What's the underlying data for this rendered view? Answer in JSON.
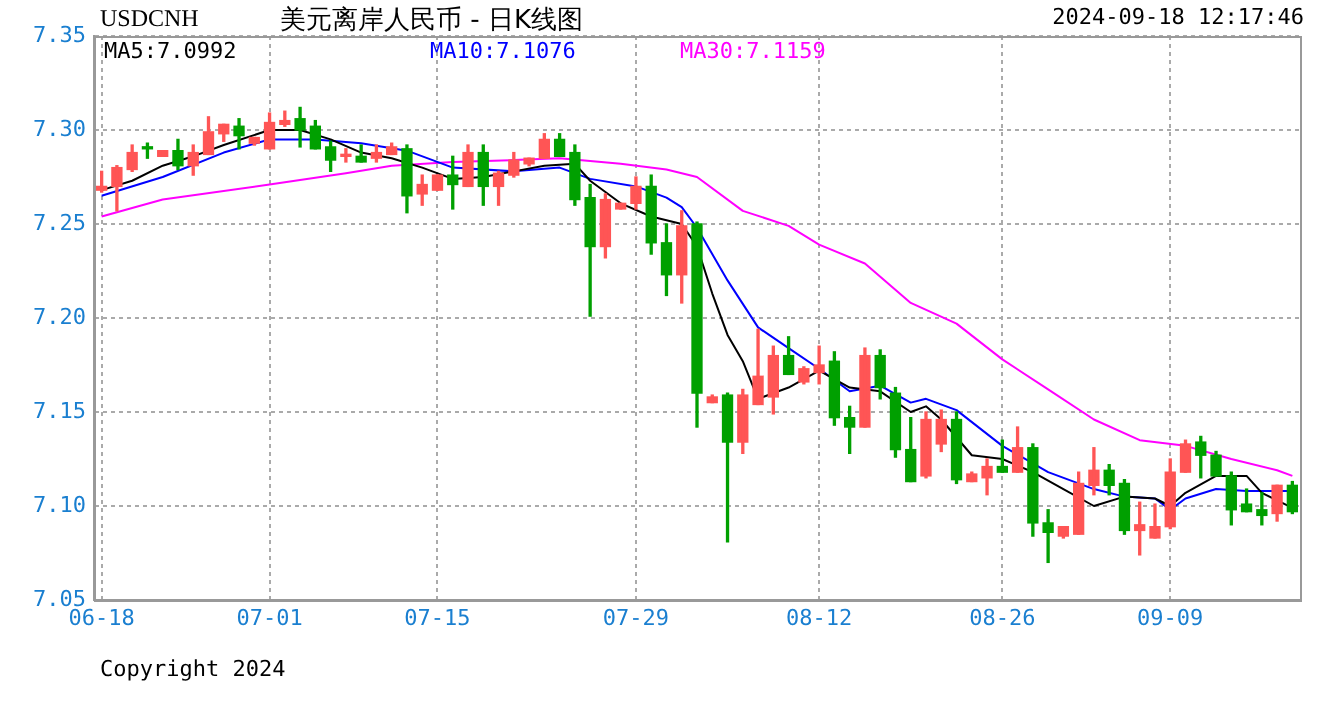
{
  "chart_data": {
    "type": "candlestick",
    "title": "美元离岸人民币 - 日K线图",
    "annotations": [
      "USDCNH",
      "2024-09-18 12:17:46",
      "Copyright 2024"
    ],
    "categories": [
      "06-18",
      null,
      null,
      null,
      null,
      null,
      null,
      null,
      null,
      null,
      null,
      "07-01",
      null,
      null,
      null,
      null,
      null,
      null,
      null,
      null,
      null,
      null,
      "07-15",
      null,
      null,
      null,
      null,
      null,
      null,
      null,
      null,
      null,
      null,
      null,
      null,
      "07-29",
      null,
      null,
      null,
      null,
      null,
      null,
      null,
      null,
      null,
      null,
      null,
      "08-12",
      null,
      null,
      null,
      null,
      null,
      null,
      null,
      null,
      null,
      null,
      null,
      "08-26",
      null,
      null,
      null,
      null,
      null,
      null,
      null,
      null,
      null,
      null,
      "09-09",
      null,
      null,
      null,
      null,
      null,
      null,
      null,
      null
    ],
    "ohlc": [
      [
        7.268,
        7.278,
        7.267,
        7.27
      ],
      [
        7.27,
        7.281,
        7.257,
        7.28
      ],
      [
        7.279,
        7.292,
        7.278,
        7.288
      ],
      [
        7.291,
        7.293,
        7.285,
        7.29
      ],
      [
        7.286,
        7.289,
        7.286,
        7.289
      ],
      [
        7.289,
        7.295,
        7.279,
        7.281
      ],
      [
        7.281,
        7.292,
        7.276,
        7.288
      ],
      [
        7.287,
        7.307,
        7.287,
        7.299
      ],
      [
        7.298,
        7.303,
        7.294,
        7.303
      ],
      [
        7.302,
        7.306,
        7.29,
        7.297
      ],
      [
        7.293,
        7.296,
        7.292,
        7.296
      ],
      [
        7.29,
        7.309,
        7.29,
        7.304
      ],
      [
        7.303,
        7.31,
        7.302,
        7.305
      ],
      [
        7.306,
        7.312,
        7.291,
        7.3
      ],
      [
        7.302,
        7.305,
        7.29,
        7.29
      ],
      [
        7.291,
        7.294,
        7.278,
        7.284
      ],
      [
        7.286,
        7.29,
        7.283,
        7.287
      ],
      [
        7.286,
        7.292,
        7.283,
        7.283
      ],
      [
        7.285,
        7.292,
        7.283,
        7.288
      ],
      [
        7.287,
        7.293,
        7.287,
        7.291
      ],
      [
        7.29,
        7.292,
        7.256,
        7.265
      ],
      [
        7.266,
        7.276,
        7.26,
        7.271
      ],
      [
        7.268,
        7.276,
        7.268,
        7.276
      ],
      [
        7.276,
        7.286,
        7.258,
        7.271
      ],
      [
        7.27,
        7.292,
        7.27,
        7.288
      ],
      [
        7.288,
        7.292,
        7.26,
        7.27
      ],
      [
        7.27,
        7.278,
        7.26,
        7.277
      ],
      [
        7.276,
        7.288,
        7.275,
        7.284
      ],
      [
        7.282,
        7.285,
        7.281,
        7.285
      ],
      [
        7.285,
        7.298,
        7.285,
        7.295
      ],
      [
        7.295,
        7.298,
        7.286,
        7.286
      ],
      [
        7.288,
        7.292,
        7.26,
        7.263
      ],
      [
        7.264,
        7.271,
        7.201,
        7.238
      ],
      [
        7.238,
        7.266,
        7.232,
        7.263
      ],
      [
        7.258,
        7.261,
        7.258,
        7.261
      ],
      [
        7.261,
        7.275,
        7.258,
        7.27
      ],
      [
        7.27,
        7.276,
        7.234,
        7.24
      ],
      [
        7.24,
        7.25,
        7.212,
        7.223
      ],
      [
        7.223,
        7.257,
        7.208,
        7.249
      ],
      [
        7.25,
        7.251,
        7.142,
        7.16
      ],
      [
        7.155,
        7.159,
        7.155,
        7.158
      ],
      [
        7.159,
        7.16,
        7.081,
        7.134
      ],
      [
        7.134,
        7.162,
        7.128,
        7.159
      ],
      [
        7.154,
        7.194,
        7.154,
        7.169
      ],
      [
        7.158,
        7.185,
        7.149,
        7.18
      ],
      [
        7.18,
        7.19,
        7.17,
        7.17
      ],
      [
        7.166,
        7.174,
        7.165,
        7.173
      ],
      [
        7.171,
        7.185,
        7.165,
        7.175
      ],
      [
        7.177,
        7.182,
        7.143,
        7.147
      ],
      [
        7.147,
        7.153,
        7.128,
        7.142
      ],
      [
        7.142,
        7.184,
        7.142,
        7.18
      ],
      [
        7.18,
        7.183,
        7.157,
        7.163
      ],
      [
        7.16,
        7.163,
        7.126,
        7.13
      ],
      [
        7.13,
        7.147,
        7.113,
        7.113
      ],
      [
        7.116,
        7.15,
        7.115,
        7.146
      ],
      [
        7.133,
        7.151,
        7.129,
        7.146
      ],
      [
        7.146,
        7.15,
        7.112,
        7.114
      ],
      [
        7.113,
        7.118,
        7.113,
        7.117
      ],
      [
        7.115,
        7.125,
        7.106,
        7.121
      ],
      [
        7.121,
        7.135,
        7.118,
        7.118
      ],
      [
        7.118,
        7.142,
        7.118,
        7.131
      ],
      [
        7.131,
        7.133,
        7.084,
        7.091
      ],
      [
        7.091,
        7.098,
        7.07,
        7.086
      ],
      [
        7.084,
        7.089,
        7.083,
        7.089
      ],
      [
        7.085,
        7.118,
        7.085,
        7.112
      ],
      [
        7.111,
        7.131,
        7.106,
        7.119
      ],
      [
        7.119,
        7.122,
        7.106,
        7.111
      ],
      [
        7.112,
        7.114,
        7.085,
        7.087
      ],
      [
        7.087,
        7.102,
        7.074,
        7.09
      ],
      [
        7.083,
        7.101,
        7.083,
        7.089
      ],
      [
        7.089,
        7.125,
        7.088,
        7.118
      ],
      [
        7.118,
        7.135,
        7.118,
        7.133
      ],
      [
        7.134,
        7.137,
        7.115,
        7.127
      ],
      [
        7.127,
        7.129,
        7.116,
        7.116
      ],
      [
        7.116,
        7.118,
        7.09,
        7.098
      ],
      [
        7.101,
        7.109,
        7.097,
        7.097
      ],
      [
        7.098,
        7.107,
        7.09,
        7.095
      ],
      [
        7.096,
        7.111,
        7.092,
        7.111
      ],
      [
        7.111,
        7.113,
        7.096,
        7.097
      ]
    ],
    "colors": [
      "#ff5555",
      "#ff5555",
      "#ff5555",
      "#00a000",
      "#ff5555",
      "#00a000",
      "#ff5555",
      "#ff5555",
      "#ff5555",
      "#00a000",
      "#ff5555",
      "#ff5555",
      "#ff5555",
      "#00a000",
      "#00a000",
      "#00a000",
      "#ff5555",
      "#00a000",
      "#ff5555",
      "#ff5555",
      "#00a000",
      "#ff5555",
      "#ff5555",
      "#00a000",
      "#ff5555",
      "#00a000",
      "#ff5555",
      "#ff5555",
      "#ff5555",
      "#ff5555",
      "#00a000",
      "#00a000",
      "#00a000",
      "#ff5555",
      "#ff5555",
      "#ff5555",
      "#00a000",
      "#00a000",
      "#ff5555",
      "#00a000",
      "#ff5555",
      "#00a000",
      "#ff5555",
      "#ff5555",
      "#ff5555",
      "#00a000",
      "#ff5555",
      "#ff5555",
      "#00a000",
      "#00a000",
      "#ff5555",
      "#00a000",
      "#00a000",
      "#00a000",
      "#ff5555",
      "#ff5555",
      "#00a000",
      "#ff5555",
      "#ff5555",
      "#00a000",
      "#ff5555",
      "#00a000",
      "#00a000",
      "#ff5555",
      "#ff5555",
      "#ff5555",
      "#00a000",
      "#00a000",
      "#ff5555",
      "#ff5555",
      "#ff5555",
      "#ff5555",
      "#00a000",
      "#00a000",
      "#00a000",
      "#00a000",
      "#00a000",
      "#ff5555",
      "#00a000"
    ],
    "series": [
      {
        "name": "MA5:7.0992",
        "color": "#000000",
        "type": "line",
        "values": [
          7.268,
          null,
          7.273,
          null,
          7.281,
          null,
          7.286,
          null,
          7.292,
          null,
          null,
          7.3,
          null,
          7.3,
          null,
          7.295,
          null,
          7.288,
          null,
          7.285,
          null,
          7.28,
          null,
          7.274,
          null,
          7.275,
          null,
          7.278,
          null,
          7.281,
          null,
          7.282,
          7.273,
          null,
          7.261,
          null,
          7.254,
          null,
          7.25,
          7.238,
          7.213,
          7.191,
          7.177,
          7.157,
          null,
          7.163,
          null,
          7.172,
          null,
          7.163,
          null,
          7.161,
          null,
          7.15,
          7.153,
          7.146,
          null,
          7.127,
          null,
          7.125,
          null,
          7.118,
          null,
          7.109,
          null,
          7.1,
          null,
          7.105,
          null,
          7.104,
          7.1,
          7.107,
          null,
          7.116,
          null,
          7.116,
          7.107,
          null,
          7.099
        ]
      },
      {
        "name": "MA10:7.1076",
        "color": "#0000ff",
        "type": "line",
        "values": [
          7.265,
          null,
          null,
          null,
          7.275,
          null,
          null,
          null,
          7.288,
          null,
          null,
          7.295,
          null,
          null,
          7.295,
          null,
          null,
          7.293,
          null,
          null,
          7.289,
          null,
          null,
          7.28,
          null,
          null,
          null,
          7.278,
          null,
          null,
          7.28,
          null,
          7.274,
          null,
          null,
          7.27,
          null,
          7.264,
          7.259,
          7.248,
          null,
          7.22,
          null,
          7.195,
          null,
          7.184,
          null,
          7.173,
          null,
          7.161,
          null,
          7.164,
          null,
          7.155,
          7.157,
          null,
          7.151,
          null,
          null,
          7.132,
          null,
          null,
          7.118,
          null,
          null,
          7.109,
          null,
          7.105,
          null,
          7.104,
          7.098,
          7.104,
          null,
          7.109,
          null,
          7.108,
          null,
          null,
          7.108
        ]
      },
      {
        "name": "MA30:7.1159",
        "color": "#ff00ff",
        "type": "line",
        "values": [
          7.254,
          null,
          null,
          null,
          7.263,
          null,
          null,
          null,
          null,
          null,
          null,
          7.271,
          null,
          null,
          null,
          null,
          7.277,
          null,
          null,
          7.281,
          null,
          null,
          null,
          7.283,
          null,
          null,
          null,
          7.284,
          null,
          null,
          7.285,
          null,
          null,
          null,
          7.282,
          null,
          null,
          7.279,
          null,
          7.275,
          null,
          null,
          7.257,
          null,
          null,
          7.249,
          null,
          7.239,
          null,
          null,
          7.229,
          null,
          null,
          7.208,
          null,
          null,
          7.197,
          null,
          null,
          7.178,
          null,
          null,
          7.162,
          null,
          null,
          7.146,
          null,
          null,
          7.135,
          null,
          null,
          7.132,
          null,
          null,
          7.125,
          null,
          null,
          7.119,
          7.116
        ]
      }
    ],
    "ylim": [
      7.05,
      7.35
    ],
    "yticks": [
      7.05,
      {
        "value": 7.1,
        "label": "7.10"
      },
      7.15,
      {
        "value": 7.2,
        "label": "7.20"
      },
      7.25,
      {
        "value": 7.3,
        "label": "7.30"
      },
      7.35
    ],
    "grid": true,
    "legend": "top left"
  }
}
